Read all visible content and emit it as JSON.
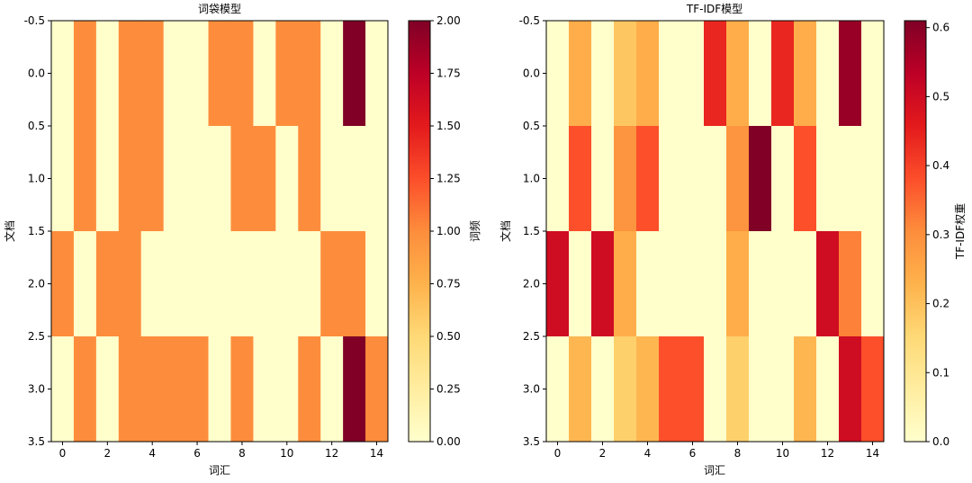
{
  "chart_data": [
    {
      "type": "heatmap",
      "title": "词袋模型",
      "xlabel": "词汇",
      "ylabel": "文档",
      "colorbar_label": "词频",
      "colormap": "YlOrRd",
      "x_ticks": [
        "0",
        "2",
        "4",
        "6",
        "8",
        "10",
        "12",
        "14"
      ],
      "y_ticks": [
        "-0.5",
        "0.0",
        "0.5",
        "1.0",
        "1.5",
        "2.0",
        "2.5",
        "3.0",
        "3.5"
      ],
      "colorbar_ticks": [
        "0.00",
        "0.25",
        "0.50",
        "0.75",
        "1.00",
        "1.25",
        "1.50",
        "1.75",
        "2.00"
      ],
      "vmin": 0,
      "vmax": 2,
      "values": [
        [
          0,
          1,
          0,
          1,
          1,
          0,
          0,
          1,
          1,
          0,
          1,
          1,
          0,
          2,
          0
        ],
        [
          0,
          1,
          0,
          1,
          1,
          0,
          0,
          0,
          1,
          1,
          0,
          1,
          0,
          0,
          0
        ],
        [
          1,
          0,
          1,
          1,
          0,
          0,
          0,
          0,
          0,
          0,
          0,
          0,
          1,
          1,
          0
        ],
        [
          0,
          1,
          0,
          1,
          1,
          1,
          1,
          0,
          1,
          0,
          0,
          1,
          0,
          2,
          1
        ]
      ]
    },
    {
      "type": "heatmap",
      "title": "TF-IDF模型",
      "xlabel": "词汇",
      "ylabel": "文档",
      "colorbar_label": "TF-IDF权重",
      "colormap": "YlOrRd",
      "x_ticks": [
        "0",
        "2",
        "4",
        "6",
        "8",
        "10",
        "12",
        "14"
      ],
      "y_ticks": [
        "-0.5",
        "0.0",
        "0.5",
        "1.0",
        "1.5",
        "2.0",
        "2.5",
        "3.0",
        "3.5"
      ],
      "colorbar_ticks": [
        "0.0",
        "0.1",
        "0.2",
        "0.3",
        "0.4",
        "0.5",
        "0.6"
      ],
      "vmin": 0,
      "vmax": 0.61,
      "values": [
        [
          0,
          0.24,
          0,
          0.19,
          0.24,
          0,
          0,
          0.44,
          0.24,
          0,
          0.44,
          0.24,
          0,
          0.58,
          0
        ],
        [
          0,
          0.38,
          0,
          0.29,
          0.38,
          0,
          0,
          0,
          0.29,
          0.61,
          0,
          0.38,
          0,
          0,
          0
        ],
        [
          0.5,
          0,
          0.5,
          0.24,
          0,
          0,
          0,
          0,
          0.24,
          0,
          0,
          0,
          0.5,
          0.32,
          0
        ],
        [
          0,
          0.22,
          0,
          0.17,
          0.22,
          0.38,
          0.38,
          0,
          0.17,
          0,
          0,
          0.22,
          0,
          0.5,
          0.38
        ]
      ]
    }
  ]
}
